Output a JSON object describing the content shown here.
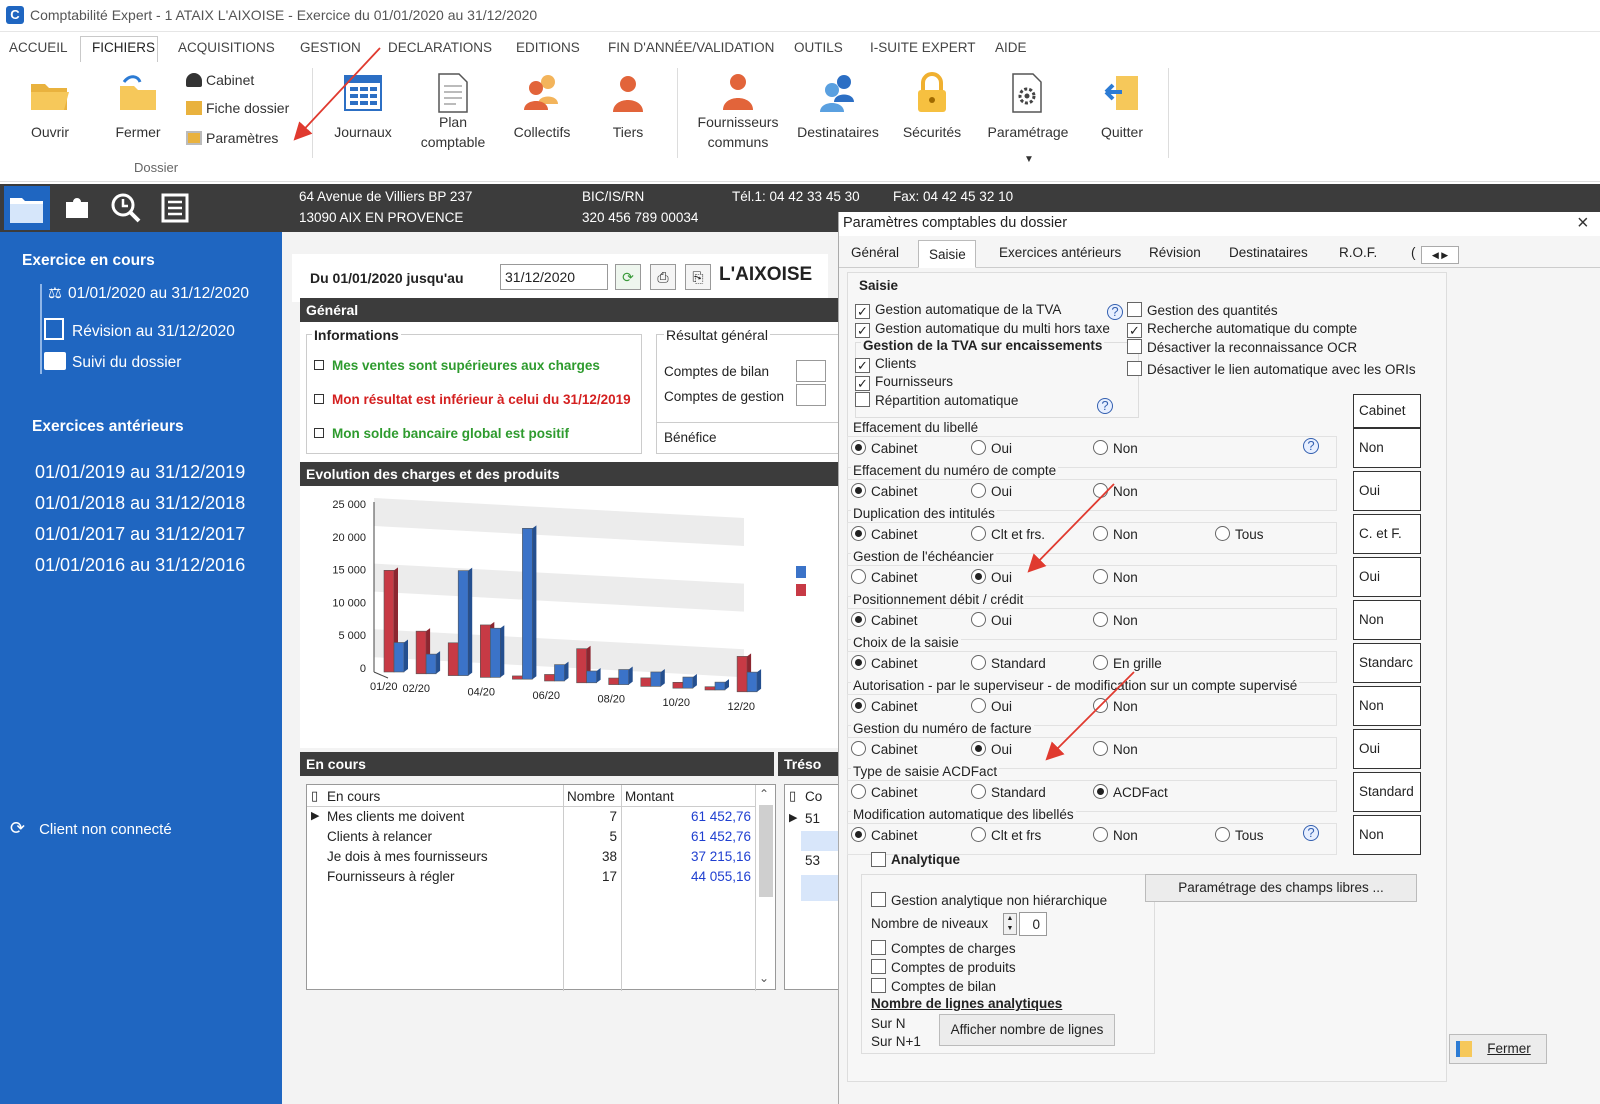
{
  "window": {
    "title": "Comptabilité Expert - 1 ATAIX L'AIXOISE - Exercice du 01/01/2020 au 31/12/2020"
  },
  "menu": [
    "ACCUEIL",
    "FICHIERS",
    "ACQUISITIONS",
    "GESTION",
    "DECLARATIONS",
    "EDITIONS",
    "FIN D'ANNÉE/VALIDATION",
    "OUTILS",
    "I-SUITE EXPERT",
    "AIDE"
  ],
  "ribbon": {
    "ouvrir": "Ouvrir",
    "fermer": "Fermer",
    "cabinet": "Cabinet",
    "fiche_dossier": "Fiche dossier",
    "parametres": "Paramètres",
    "group_dossier": "Dossier",
    "journaux": "Journaux",
    "plan_l1": "Plan",
    "plan_l2": "comptable",
    "collectifs": "Collectifs",
    "tiers": "Tiers",
    "fourn_l1": "Fournisseurs",
    "fourn_l2": "communs",
    "destinataires": "Destinataires",
    "securites": "Sécurités",
    "parametrage": "Paramétrage",
    "quitter": "Quitter"
  },
  "header": {
    "addr1": "64 Avenue de Villiers BP 237",
    "addr2": "13090 AIX EN PROVENCE",
    "bic_label": "BIC/IS/RN",
    "bic_value": "320 456 789 00034",
    "tel": "Tél.1: 04 42 33 45 30",
    "fax": "Fax: 04 42 45 32 10"
  },
  "sidebar": {
    "current_title": "Exercice en cours",
    "current_items": [
      "01/01/2020 au 31/12/2020",
      "Révision au 31/12/2020",
      "Suivi du dossier"
    ],
    "previous_title": "Exercices antérieurs",
    "previous_items": [
      "01/01/2019 au 31/12/2019",
      "01/01/2018 au 31/12/2018",
      "01/01/2017 au 31/12/2017",
      "01/01/2016 au 31/12/2016"
    ],
    "status": "Client non connecté"
  },
  "main": {
    "period_label": "Du 01/01/2020 jusqu'au",
    "period_end": "31/12/2020",
    "company": "L'AIXOISE",
    "general": "Général",
    "informations": "Informations",
    "info_items": [
      {
        "text": "Mes ventes sont supérieures aux charges",
        "color": "#2e9b2e"
      },
      {
        "text": "Mon résultat est inférieur à celui du 31/12/2019",
        "color": "#d42020"
      },
      {
        "text": "Mon solde bancaire global est positif",
        "color": "#2e9b2e"
      }
    ],
    "resultat": "Résultat général",
    "comptes_bilan": "Comptes de bilan",
    "comptes_gestion": "Comptes de gestion",
    "benefice": "Bénéfice",
    "evolution": "Evolution des charges et des produits",
    "en_cours": "En cours",
    "treso": "Tréso",
    "table": {
      "headers": [
        "En cours",
        "Nombre",
        "Montant"
      ],
      "rows": [
        [
          "Mes clients me doivent",
          "7",
          "61 452,76"
        ],
        [
          "Clients à relancer",
          "5",
          "61 452,76"
        ],
        [
          "Je dois à mes fournisseurs",
          "38",
          "37 215,16"
        ],
        [
          "Fournisseurs à régler",
          "17",
          "44 055,16"
        ]
      ],
      "right_col_header": "Co",
      "right_vals": [
        "51",
        "53"
      ]
    }
  },
  "chart_data": {
    "type": "bar",
    "categories": [
      "01/20",
      "02/20",
      "03/20",
      "04/20",
      "05/20",
      "06/20",
      "07/20",
      "08/20",
      "09/20",
      "10/20",
      "11/20",
      "12/20"
    ],
    "tick_labels": [
      "01/20",
      "02/20",
      "04/20",
      "06/20",
      "08/20",
      "10/20",
      "12/20"
    ],
    "series": [
      {
        "color": "#c73a45",
        "values": [
          15500,
          6500,
          5000,
          8000,
          500,
          1000,
          5200,
          1000,
          1300,
          900,
          500,
          5400
        ]
      },
      {
        "color": "#3b73c8",
        "values": [
          4500,
          3000,
          16000,
          7500,
          23000,
          2500,
          1800,
          2300,
          2200,
          1700,
          1200,
          3000
        ]
      }
    ],
    "yticks": [
      "25 000",
      "20 000",
      "15 000",
      "10 000",
      "5 000",
      "0"
    ],
    "ylim": [
      0,
      25000
    ]
  },
  "dialog": {
    "title": "Paramètres comptables du dossier",
    "tabs": [
      "Général",
      "Saisie",
      "Exercices antérieurs",
      "Révision",
      "Destinataires",
      "R.O.F.",
      "("
    ],
    "saisie": "Saisie",
    "checks_left": [
      {
        "label": "Gestion automatique de la TVA",
        "checked": true
      },
      {
        "label": "Gestion automatique du multi hors taxe",
        "checked": true
      }
    ],
    "tva_enc_title": "Gestion de la TVA sur encaissements",
    "tva_enc": [
      {
        "label": "Clients",
        "checked": true
      },
      {
        "label": "Fournisseurs",
        "checked": true
      },
      {
        "label": "Répartition automatique",
        "checked": false
      }
    ],
    "checks_right": [
      {
        "label": "Gestion des quantités",
        "checked": false
      },
      {
        "label": "Recherche automatique du compte",
        "checked": true
      },
      {
        "label": "Désactiver la reconnaissance OCR",
        "checked": false
      },
      {
        "label": "Désactiver le lien automatique avec les ORIs",
        "checked": false
      }
    ],
    "cabinet_header": "Cabinet",
    "groups": [
      {
        "title": "Effacement du libellé",
        "options": [
          "Cabinet",
          "Oui",
          "Non"
        ],
        "selected": 0,
        "value": "Non",
        "help": true
      },
      {
        "title": "Effacement du numéro de compte",
        "options": [
          "Cabinet",
          "Oui",
          "Non"
        ],
        "selected": 0,
        "value": "Oui"
      },
      {
        "title": "Duplication des intitulés",
        "options": [
          "Cabinet",
          "Clt et frs.",
          "Non",
          "Tous"
        ],
        "selected": 0,
        "value": "C. et F."
      },
      {
        "title": "Gestion de l'échéancier",
        "options": [
          "Cabinet",
          "Oui",
          "Non"
        ],
        "selected": 1,
        "value": "Oui"
      },
      {
        "title": "Positionnement débit / crédit",
        "options": [
          "Cabinet",
          "Oui",
          "Non"
        ],
        "selected": 0,
        "value": "Non"
      },
      {
        "title": "Choix de la saisie",
        "options": [
          "Cabinet",
          "Standard",
          "En grille"
        ],
        "selected": 0,
        "value": "Standarc"
      },
      {
        "title": "Autorisation - par le superviseur - de modification sur un compte supervisé",
        "options": [
          "Cabinet",
          "Oui",
          "Non"
        ],
        "selected": 0,
        "value": "Non"
      },
      {
        "title": "Gestion du numéro de facture",
        "options": [
          "Cabinet",
          "Oui",
          "Non"
        ],
        "selected": 1,
        "value": "Oui"
      },
      {
        "title": "Type de saisie ACDFact",
        "options": [
          "Cabinet",
          "Standard",
          "ACDFact"
        ],
        "selected": 2,
        "value": "Standard"
      },
      {
        "title": "Modification automatique des libellés",
        "options": [
          "Cabinet",
          "Clt et frs",
          "Non",
          "Tous"
        ],
        "selected": 0,
        "value": "Non",
        "help": true
      }
    ],
    "analytique": "Analytique",
    "ana_non_hier": "Gestion analytique non hiérarchique",
    "nb_niveaux": "Nombre de niveaux",
    "nb_niveaux_val": "0",
    "ana_checks": [
      "Comptes de charges",
      "Comptes de produits",
      "Comptes de bilan"
    ],
    "nb_lignes": "Nombre de lignes analytiques",
    "sur_n": "Sur N",
    "sur_n1": "Sur N+1",
    "afficher_btn": "Afficher nombre de lignes",
    "champs_libres_btn": "Paramétrage des champs libres ...",
    "fermer_btn": "Fermer"
  }
}
